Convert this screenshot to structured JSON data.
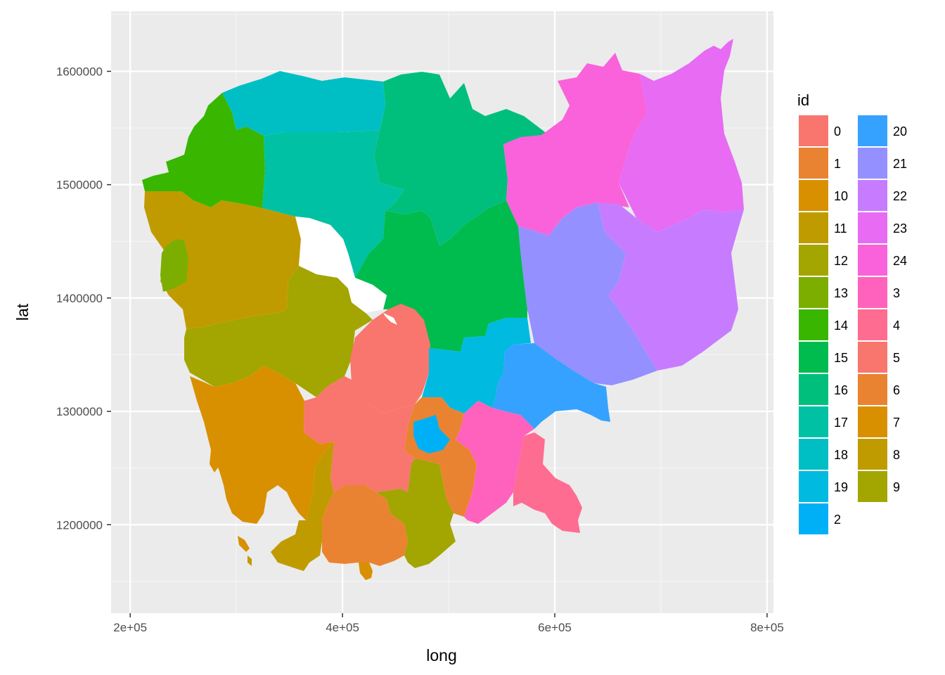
{
  "chart_data": {
    "type": "choropleth-map",
    "xlabel": "long",
    "ylabel": "lat",
    "x_ticks": [
      {
        "value": 200000,
        "label": "2e+05"
      },
      {
        "value": 400000,
        "label": "4e+05"
      },
      {
        "value": 600000,
        "label": "6e+05"
      },
      {
        "value": 800000,
        "label": "8e+05"
      }
    ],
    "y_ticks": [
      {
        "value": 1200000,
        "label": "1200000"
      },
      {
        "value": 1300000,
        "label": "1300000"
      },
      {
        "value": 1400000,
        "label": "1400000"
      },
      {
        "value": 1500000,
        "label": "1500000"
      },
      {
        "value": 1600000,
        "label": "1600000"
      }
    ],
    "xlim": [
      182000,
      806000
    ],
    "ylim": [
      1122000,
      1653000
    ],
    "grid": true,
    "legend": {
      "title": "id",
      "placement": "right",
      "entries": [
        {
          "id": "0",
          "color": "#F8766D"
        },
        {
          "id": "1",
          "color": "#EA8331"
        },
        {
          "id": "10",
          "color": "#D89000"
        },
        {
          "id": "11",
          "color": "#C09B00"
        },
        {
          "id": "12",
          "color": "#A3A500"
        },
        {
          "id": "13",
          "color": "#7CAE00"
        },
        {
          "id": "14",
          "color": "#39B600"
        },
        {
          "id": "15",
          "color": "#00BB4E"
        },
        {
          "id": "16",
          "color": "#00BF7D"
        },
        {
          "id": "17",
          "color": "#00C1A3"
        },
        {
          "id": "18",
          "color": "#00BFC4"
        },
        {
          "id": "19",
          "color": "#00BAE0"
        },
        {
          "id": "2",
          "color": "#00B0F6"
        },
        {
          "id": "20",
          "color": "#35A2FF"
        },
        {
          "id": "21",
          "color": "#9590FF"
        },
        {
          "id": "22",
          "color": "#C77CFF"
        },
        {
          "id": "23",
          "color": "#E76BF3"
        },
        {
          "id": "24",
          "color": "#FA62DB"
        },
        {
          "id": "3",
          "color": "#FF62BC"
        },
        {
          "id": "4",
          "color": "#FF6C91"
        },
        {
          "id": "5",
          "color": "#F8766D"
        },
        {
          "id": "6",
          "color": "#EA8331"
        },
        {
          "id": "7",
          "color": "#D89000"
        },
        {
          "id": "8",
          "color": "#C09B00"
        },
        {
          "id": "9",
          "color": "#A3A500"
        }
      ]
    }
  }
}
